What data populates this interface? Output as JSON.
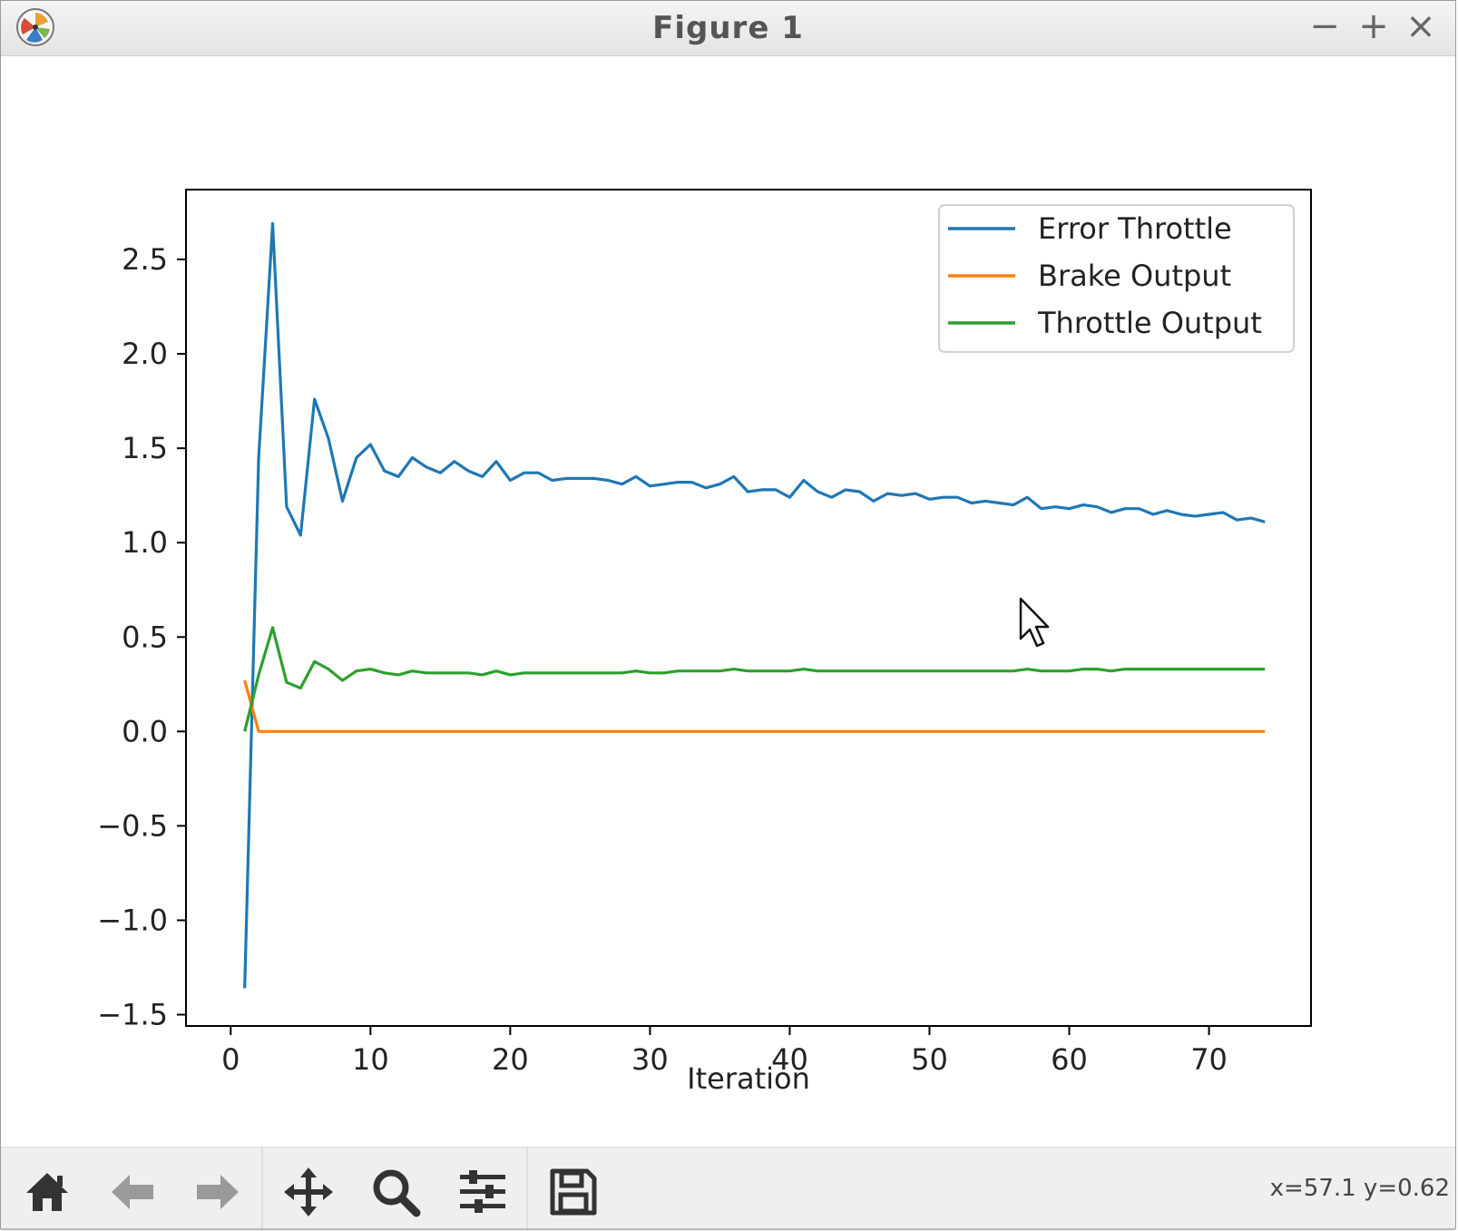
{
  "window": {
    "title": "Figure 1",
    "controls": {
      "minimize": "−",
      "maximize": "+",
      "close": "×"
    }
  },
  "toolbar": {
    "buttons": [
      {
        "name": "home",
        "icon": "home-icon",
        "enabled": true
      },
      {
        "name": "back",
        "icon": "arrow-left-icon",
        "enabled": false
      },
      {
        "name": "forward",
        "icon": "arrow-right-icon",
        "enabled": false
      },
      {
        "name": "pan",
        "icon": "move-icon",
        "enabled": true
      },
      {
        "name": "zoom",
        "icon": "magnifier-icon",
        "enabled": true
      },
      {
        "name": "configure",
        "icon": "sliders-icon",
        "enabled": true
      },
      {
        "name": "save",
        "icon": "floppy-disk-icon",
        "enabled": true
      }
    ],
    "coordinates": "x=57.1 y=0.62"
  },
  "chart_data": {
    "type": "line",
    "title": "",
    "xlabel": "Iteration",
    "ylabel": "",
    "xlim": [
      -3.2,
      77.3
    ],
    "ylim": [
      -1.56,
      2.87
    ],
    "xticks": [
      0,
      10,
      20,
      30,
      40,
      50,
      60,
      70
    ],
    "xtick_labels": [
      "0",
      "10",
      "20",
      "30",
      "40",
      "50",
      "60",
      "70"
    ],
    "yticks": [
      -1.5,
      -1.0,
      -0.5,
      0.0,
      0.5,
      1.0,
      1.5,
      2.0,
      2.5
    ],
    "ytick_labels": [
      "−1.5",
      "−1.0",
      "−0.5",
      "0.0",
      "0.5",
      "1.0",
      "1.5",
      "2.0",
      "2.5"
    ],
    "grid": false,
    "legend_position": "top-right",
    "x": [
      1,
      2,
      3,
      4,
      5,
      6,
      7,
      8,
      9,
      10,
      11,
      12,
      13,
      14,
      15,
      16,
      17,
      18,
      19,
      20,
      21,
      22,
      23,
      24,
      25,
      26,
      27,
      28,
      29,
      30,
      31,
      32,
      33,
      34,
      35,
      36,
      37,
      38,
      39,
      40,
      41,
      42,
      43,
      44,
      45,
      46,
      47,
      48,
      49,
      50,
      51,
      52,
      53,
      54,
      55,
      56,
      57,
      58,
      59,
      60,
      61,
      62,
      63,
      64,
      65,
      66,
      67,
      68,
      69,
      70,
      71,
      72,
      73,
      74
    ],
    "series": [
      {
        "name": "Error Throttle",
        "color": "#1f77b4",
        "values": [
          -1.36,
          1.45,
          2.69,
          1.19,
          1.04,
          1.76,
          1.55,
          1.22,
          1.45,
          1.52,
          1.38,
          1.35,
          1.45,
          1.4,
          1.37,
          1.43,
          1.38,
          1.35,
          1.43,
          1.33,
          1.37,
          1.37,
          1.33,
          1.34,
          1.34,
          1.34,
          1.33,
          1.31,
          1.35,
          1.3,
          1.31,
          1.32,
          1.32,
          1.29,
          1.31,
          1.35,
          1.27,
          1.28,
          1.28,
          1.24,
          1.33,
          1.27,
          1.24,
          1.28,
          1.27,
          1.22,
          1.26,
          1.25,
          1.26,
          1.23,
          1.24,
          1.24,
          1.21,
          1.22,
          1.21,
          1.2,
          1.24,
          1.18,
          1.19,
          1.18,
          1.2,
          1.19,
          1.16,
          1.18,
          1.18,
          1.15,
          1.17,
          1.15,
          1.14,
          1.15,
          1.16,
          1.12,
          1.13,
          1.11
        ]
      },
      {
        "name": "Brake Output",
        "color": "#ff7f0e",
        "values": [
          0.27,
          0,
          0,
          0,
          0,
          0,
          0,
          0,
          0,
          0,
          0,
          0,
          0,
          0,
          0,
          0,
          0,
          0,
          0,
          0,
          0,
          0,
          0,
          0,
          0,
          0,
          0,
          0,
          0,
          0,
          0,
          0,
          0,
          0,
          0,
          0,
          0,
          0,
          0,
          0,
          0,
          0,
          0,
          0,
          0,
          0,
          0,
          0,
          0,
          0,
          0,
          0,
          0,
          0,
          0,
          0,
          0,
          0,
          0,
          0,
          0,
          0,
          0,
          0,
          0,
          0,
          0,
          0,
          0,
          0,
          0,
          0,
          0,
          0
        ]
      },
      {
        "name": "Throttle Output",
        "color": "#2ca02c",
        "values": [
          0.0,
          0.3,
          0.55,
          0.26,
          0.23,
          0.37,
          0.33,
          0.27,
          0.32,
          0.33,
          0.31,
          0.3,
          0.32,
          0.31,
          0.31,
          0.31,
          0.31,
          0.3,
          0.32,
          0.3,
          0.31,
          0.31,
          0.31,
          0.31,
          0.31,
          0.31,
          0.31,
          0.31,
          0.32,
          0.31,
          0.31,
          0.32,
          0.32,
          0.32,
          0.32,
          0.33,
          0.32,
          0.32,
          0.32,
          0.32,
          0.33,
          0.32,
          0.32,
          0.32,
          0.32,
          0.32,
          0.32,
          0.32,
          0.32,
          0.32,
          0.32,
          0.32,
          0.32,
          0.32,
          0.32,
          0.32,
          0.33,
          0.32,
          0.32,
          0.32,
          0.33,
          0.33,
          0.32,
          0.33,
          0.33,
          0.33,
          0.33,
          0.33,
          0.33,
          0.33,
          0.33,
          0.33,
          0.33,
          0.33
        ]
      }
    ]
  }
}
